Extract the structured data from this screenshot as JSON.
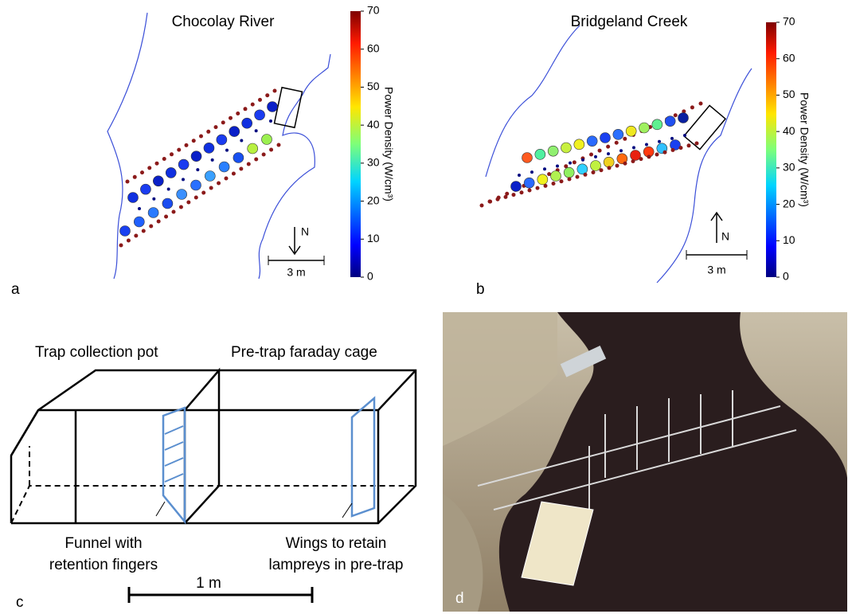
{
  "panel_a": {
    "title": "Chocolay River",
    "label": "a",
    "north": "N",
    "scale": "3 m",
    "colorbar": {
      "label": "Power Density (W/cm³)",
      "ticks": [
        0,
        10,
        20,
        30,
        40,
        50,
        60,
        70
      ]
    }
  },
  "panel_b": {
    "title": "Bridgeland Creek",
    "label": "b",
    "north": "N",
    "scale": "3 m",
    "colorbar": {
      "label": "Power Density (W/cm³)",
      "ticks": [
        0,
        10,
        20,
        30,
        40,
        50,
        60,
        70
      ]
    }
  },
  "panel_c": {
    "label": "c",
    "pot": "Trap collection pot",
    "cage": "Pre-trap faraday cage",
    "funnel": [
      "Funnel with",
      "retention fingers"
    ],
    "wings": [
      "Wings to retain",
      "lampreys in pre-trap"
    ],
    "scale": "1 m"
  },
  "panel_d": {
    "label": "d"
  }
}
